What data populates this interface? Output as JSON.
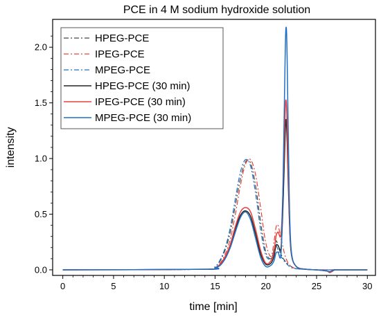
{
  "chart_data": {
    "type": "line",
    "title": "PCE in 4 M sodium hydroxide solution",
    "xlabel": "time [min]",
    "ylabel": "intensity",
    "xlim": [
      -1,
      30.8
    ],
    "ylim": [
      -0.05,
      2.25
    ],
    "x_ticks": [
      0,
      5,
      10,
      15,
      20,
      25,
      30
    ],
    "x_tick_labels": [
      "0",
      "5",
      "10",
      "15",
      "20",
      "25",
      "30"
    ],
    "y_ticks": [
      0.0,
      0.5,
      1.0,
      1.5,
      2.0
    ],
    "y_tick_labels": [
      "0.0",
      "0.5",
      "1.0",
      "1.5",
      "2.0"
    ],
    "grid": false,
    "legend_position": "top-left",
    "series": [
      {
        "name": "HPEG-PCE",
        "color": "#444444",
        "dash": "dashdot",
        "x": [
          0,
          14,
          15,
          15.5,
          16,
          16.5,
          17,
          17.5,
          18,
          18.5,
          19,
          19.5,
          20,
          20.5,
          20.8,
          21,
          21.2,
          21.5,
          21.8,
          22,
          22.2,
          22.5,
          23,
          24,
          25,
          26,
          27,
          30
        ],
        "y": [
          0,
          0.005,
          0.03,
          0.08,
          0.18,
          0.34,
          0.58,
          0.82,
          0.97,
          0.96,
          0.75,
          0.42,
          0.16,
          0.1,
          0.18,
          0.26,
          0.22,
          0.14,
          0.09,
          0.07,
          0.05,
          0.03,
          0.01,
          0.005,
          0,
          0,
          0,
          0
        ]
      },
      {
        "name": "IPEG-PCE",
        "color": "#e8403a",
        "dash": "dashdot",
        "x": [
          0,
          14,
          15,
          15.5,
          16,
          16.5,
          17,
          17.5,
          18,
          18.5,
          19,
          19.5,
          20,
          20.5,
          20.8,
          21,
          21.2,
          21.5,
          21.8,
          22,
          22.2,
          22.5,
          23,
          24,
          25,
          26,
          27,
          30
        ],
        "y": [
          0,
          0.005,
          0.02,
          0.06,
          0.14,
          0.28,
          0.5,
          0.76,
          0.95,
          0.99,
          0.85,
          0.55,
          0.24,
          0.12,
          0.25,
          0.38,
          0.4,
          0.28,
          0.16,
          0.1,
          0.06,
          0.03,
          0.01,
          0.005,
          0,
          0,
          0,
          0
        ]
      },
      {
        "name": "MPEG-PCE",
        "color": "#1f6fc5",
        "dash": "dashdot",
        "x": [
          0,
          14,
          15,
          15.5,
          16,
          16.5,
          17,
          17.5,
          18,
          18.5,
          19,
          19.5,
          20,
          20.5,
          20.8,
          21,
          21.2,
          21.5,
          21.8,
          22,
          22.2,
          22.5,
          23,
          24,
          25,
          26,
          27,
          30
        ],
        "y": [
          0,
          0.005,
          0.03,
          0.09,
          0.2,
          0.38,
          0.64,
          0.88,
          0.99,
          0.93,
          0.68,
          0.35,
          0.13,
          0.1,
          0.17,
          0.22,
          0.18,
          0.12,
          0.08,
          0.06,
          0.04,
          0.02,
          0.01,
          0.005,
          0,
          0,
          0,
          0
        ]
      },
      {
        "name": "HPEG-PCE (30 min)",
        "color": "#222222",
        "dash": "solid",
        "x": [
          0,
          14,
          15,
          15.5,
          16,
          16.5,
          17,
          17.5,
          18,
          18.5,
          19,
          19.5,
          20,
          20.5,
          20.8,
          21,
          21.2,
          21.5,
          21.7,
          21.9,
          22,
          22.1,
          22.3,
          22.5,
          23,
          24,
          25,
          26,
          26.3,
          26.8,
          27,
          30
        ],
        "y": [
          0,
          0.005,
          0.02,
          0.05,
          0.11,
          0.22,
          0.37,
          0.49,
          0.53,
          0.48,
          0.32,
          0.14,
          0.05,
          0.06,
          0.12,
          0.22,
          0.22,
          0.2,
          0.6,
          1.2,
          1.35,
          1.15,
          0.5,
          0.15,
          0.03,
          0.005,
          0,
          -0.01,
          -0.02,
          0,
          0,
          0
        ]
      },
      {
        "name": "IPEG-PCE (30 min)",
        "color": "#e8403a",
        "dash": "solid",
        "x": [
          0,
          14,
          15,
          15.5,
          16,
          16.5,
          17,
          17.5,
          18,
          18.5,
          19,
          19.5,
          20,
          20.5,
          20.8,
          21,
          21.2,
          21.5,
          21.7,
          21.9,
          22,
          22.1,
          22.3,
          22.5,
          23,
          24,
          25,
          26,
          26.3,
          26.8,
          27,
          30
        ],
        "y": [
          0,
          0.005,
          0.02,
          0.05,
          0.12,
          0.23,
          0.39,
          0.52,
          0.56,
          0.52,
          0.36,
          0.17,
          0.06,
          0.08,
          0.16,
          0.3,
          0.34,
          0.32,
          0.75,
          1.4,
          1.52,
          1.3,
          0.55,
          0.16,
          0.03,
          0.005,
          0,
          -0.01,
          -0.025,
          0,
          0,
          0
        ]
      },
      {
        "name": "MPEG-PCE (30 min)",
        "color": "#1f6fc5",
        "dash": "solid",
        "x": [
          0,
          14,
          15,
          15.5,
          16,
          16.5,
          17,
          17.5,
          18,
          18.5,
          19,
          19.5,
          20,
          20.5,
          20.8,
          21,
          21.2,
          21.5,
          21.7,
          21.9,
          22,
          22.1,
          22.3,
          22.5,
          23,
          24,
          25,
          26,
          26.3,
          26.8,
          27,
          30
        ],
        "y": [
          0,
          0.005,
          0.02,
          0.04,
          0.1,
          0.2,
          0.34,
          0.47,
          0.52,
          0.45,
          0.28,
          0.11,
          0.03,
          0.04,
          0.08,
          0.15,
          0.16,
          0.15,
          0.8,
          1.9,
          2.18,
          1.9,
          0.7,
          0.18,
          0.03,
          0.005,
          0,
          -0.01,
          -0.015,
          0,
          0,
          0
        ]
      }
    ]
  }
}
